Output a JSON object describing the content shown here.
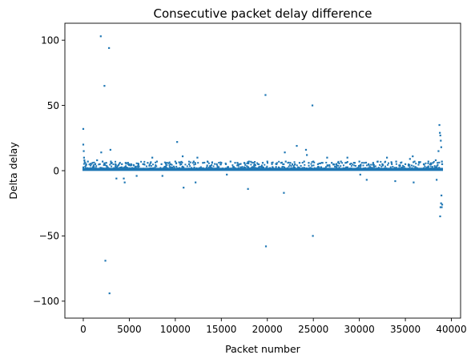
{
  "chart_data": {
    "type": "scatter",
    "title": "Consecutive packet delay difference",
    "xlabel": "Packet number",
    "ylabel": "Delta delay",
    "xlim": [
      -2000,
      41000
    ],
    "ylim": [
      -113,
      113
    ],
    "xticks": [
      {
        "value": 0,
        "label": "0"
      },
      {
        "value": 5000,
        "label": "5000"
      },
      {
        "value": 10000,
        "label": "10000"
      },
      {
        "value": 15000,
        "label": "15000"
      },
      {
        "value": 20000,
        "label": "20000"
      },
      {
        "value": 25000,
        "label": "25000"
      },
      {
        "value": 30000,
        "label": "30000"
      },
      {
        "value": 35000,
        "label": "35000"
      },
      {
        "value": 40000,
        "label": "40000"
      }
    ],
    "yticks": [
      {
        "value": 100,
        "label": "100"
      },
      {
        "value": 50,
        "label": "50"
      },
      {
        "value": 0,
        "label": "0"
      },
      {
        "value": -50,
        "label": "−50"
      },
      {
        "value": -100,
        "label": "−100"
      }
    ],
    "grid": false,
    "legend": "none",
    "marker_color": "#1f77b4",
    "series": [
      {
        "points": [
          [
            0,
            32
          ],
          [
            0,
            20
          ],
          [
            50,
            15
          ],
          [
            80,
            10
          ],
          [
            120,
            8
          ],
          [
            200,
            6
          ],
          [
            300,
            5
          ],
          [
            500,
            7
          ],
          [
            800,
            4
          ],
          [
            1000,
            6
          ],
          [
            1300,
            5
          ],
          [
            1500,
            8
          ],
          [
            1800,
            5
          ],
          [
            1900,
            103
          ],
          [
            1950,
            14
          ],
          [
            2100,
            7
          ],
          [
            2300,
            65
          ],
          [
            2400,
            -69
          ],
          [
            2500,
            6
          ],
          [
            2800,
            94
          ],
          [
            2850,
            -94
          ],
          [
            2950,
            16
          ],
          [
            3000,
            7
          ],
          [
            3500,
            5
          ],
          [
            3600,
            -6
          ],
          [
            4200,
            5
          ],
          [
            4400,
            -6
          ],
          [
            4500,
            -9
          ],
          [
            4600,
            6
          ],
          [
            5000,
            5
          ],
          [
            5500,
            4
          ],
          [
            5800,
            -4
          ],
          [
            6000,
            5
          ],
          [
            6500,
            5
          ],
          [
            7000,
            6
          ],
          [
            7500,
            10
          ],
          [
            8000,
            7
          ],
          [
            8500,
            5
          ],
          [
            8600,
            -4
          ],
          [
            9000,
            6
          ],
          [
            9500,
            5
          ],
          [
            10000,
            7
          ],
          [
            10200,
            22
          ],
          [
            10500,
            6
          ],
          [
            10800,
            11
          ],
          [
            10900,
            -13
          ],
          [
            11500,
            5
          ],
          [
            12000,
            7
          ],
          [
            12200,
            -9
          ],
          [
            12400,
            10
          ],
          [
            13000,
            6
          ],
          [
            13500,
            7
          ],
          [
            14000,
            6
          ],
          [
            14500,
            5
          ],
          [
            15000,
            6
          ],
          [
            15500,
            5
          ],
          [
            15600,
            -3
          ],
          [
            16000,
            7
          ],
          [
            16500,
            6
          ],
          [
            17000,
            5
          ],
          [
            17500,
            6
          ],
          [
            17900,
            -14
          ],
          [
            18000,
            7
          ],
          [
            18500,
            6
          ],
          [
            19000,
            5
          ],
          [
            19500,
            6
          ],
          [
            19800,
            58
          ],
          [
            19850,
            -58
          ],
          [
            20000,
            7
          ],
          [
            20500,
            6
          ],
          [
            21000,
            5
          ],
          [
            21500,
            6
          ],
          [
            21800,
            -17
          ],
          [
            21900,
            14
          ],
          [
            22000,
            7
          ],
          [
            22500,
            6
          ],
          [
            23000,
            5
          ],
          [
            23200,
            19
          ],
          [
            23500,
            6
          ],
          [
            24000,
            7
          ],
          [
            24200,
            16
          ],
          [
            24300,
            12
          ],
          [
            24500,
            6
          ],
          [
            24900,
            50
          ],
          [
            24950,
            -50
          ],
          [
            25000,
            7
          ],
          [
            25500,
            5
          ],
          [
            26000,
            6
          ],
          [
            26500,
            10
          ],
          [
            27000,
            6
          ],
          [
            27500,
            5
          ],
          [
            28000,
            7
          ],
          [
            28500,
            6
          ],
          [
            28700,
            10
          ],
          [
            29000,
            5
          ],
          [
            29500,
            6
          ],
          [
            30000,
            7
          ],
          [
            30100,
            -3
          ],
          [
            30500,
            6
          ],
          [
            30800,
            -7
          ],
          [
            31000,
            5
          ],
          [
            31500,
            6
          ],
          [
            32000,
            7
          ],
          [
            32500,
            5
          ],
          [
            33000,
            10
          ],
          [
            33500,
            6
          ],
          [
            33900,
            -8
          ],
          [
            34000,
            7
          ],
          [
            34500,
            6
          ],
          [
            35000,
            5
          ],
          [
            35500,
            9
          ],
          [
            35800,
            11
          ],
          [
            35900,
            -9
          ],
          [
            36000,
            7
          ],
          [
            36500,
            6
          ],
          [
            37000,
            5
          ],
          [
            37500,
            7
          ],
          [
            37800,
            5
          ],
          [
            38000,
            6
          ],
          [
            38300,
            8
          ],
          [
            38400,
            -7
          ],
          [
            38500,
            6
          ],
          [
            38600,
            15
          ],
          [
            38700,
            35
          ],
          [
            38750,
            29
          ],
          [
            38780,
            -35
          ],
          [
            38800,
            27
          ],
          [
            38820,
            -28
          ],
          [
            38850,
            23
          ],
          [
            38880,
            -25
          ],
          [
            38900,
            18
          ],
          [
            38920,
            -19
          ],
          [
            38950,
            -28
          ],
          [
            38970,
            7
          ],
          [
            39000,
            5
          ],
          [
            39000,
            -26
          ]
        ]
      }
    ]
  }
}
